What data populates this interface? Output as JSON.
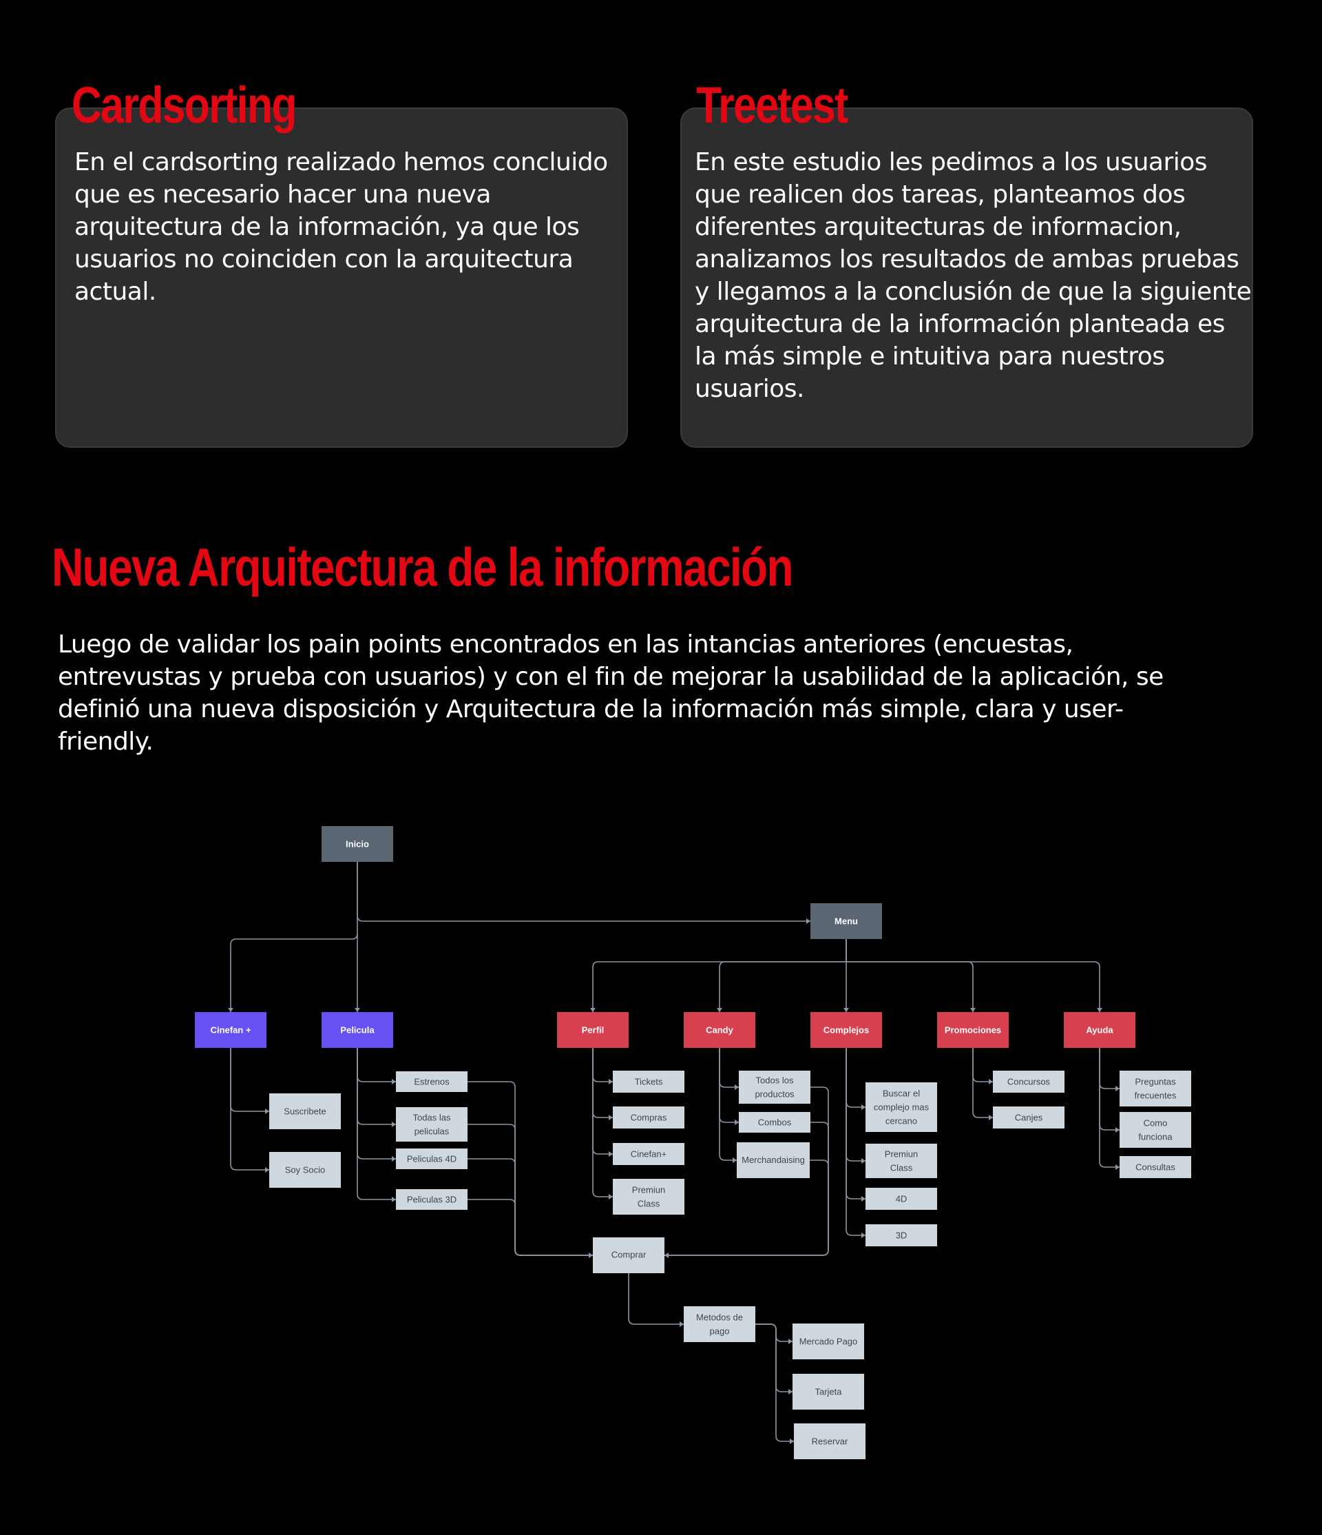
{
  "cards": {
    "cardsorting": {
      "title": "Cardsorting",
      "body": "En el cardsorting realizado hemos concluido que es necesario hacer una nueva arquitectura de la información, ya que los usuarios no coinciden con la arquitectura actual."
    },
    "treetest": {
      "title": "Treetest",
      "body": "En este estudio les pedimos a los usuarios que realicen dos tareas, planteamos dos diferentes arquitecturas de informacion, analizamos los resultados de ambas pruebas y llegamos a la conclusión de que la siguiente arquitectura de la información planteada es la más simple e intuitiva para nuestros usuarios."
    }
  },
  "section": {
    "title": "Nueva Arquitectura de la información",
    "body": "Luego de validar los pain points encontrados en las intancias anteriores (encuestas, entrevustas y prueba con usuarios) y con el fin de mejorar la usabilidad de la aplicación, se definió una nueva disposición y Arquitectura de la información más simple, clara y user-friendly."
  },
  "colors": {
    "root": "#5b6673",
    "purple": "#6652f2",
    "red": "#d6404f",
    "leaf": "#cfd8df",
    "line": "#8a96a2",
    "accent": "#e30613",
    "card": "#2d2d2d"
  },
  "diagram": {
    "nodes": {
      "inicio": "Inicio",
      "menu": "Menu",
      "cinefan_plus": "Cinefan +",
      "pelicula": "Pelicula",
      "perfil": "Perfil",
      "candy": "Candy",
      "complejos": "Complejos",
      "promociones": "Promociones",
      "ayuda": "Ayuda",
      "suscribete": "Suscribete",
      "soy_socio": "Soy Socio",
      "estrenos": "Estrenos",
      "todas_peliculas": [
        "Todas las",
        "peliculas"
      ],
      "peliculas_4d": "Peliculas 4D",
      "peliculas_3d": "Peliculas 3D",
      "tickets": "Tickets",
      "compras": "Compras",
      "cinefan_perfil": "Cinefan+",
      "premium_class_perfil": [
        "Premiun",
        "Class"
      ],
      "todos_productos": [
        "Todos los",
        "productos"
      ],
      "combos": "Combos",
      "merchandaising": "Merchandaising",
      "buscar_complejo": [
        "Buscar el",
        "complejo mas",
        "cercano"
      ],
      "premium_class_complejos": [
        "Premiun",
        "Class"
      ],
      "c_4d": "4D",
      "c_3d": "3D",
      "concursos": "Concursos",
      "canjes": "Canjes",
      "preguntas": [
        "Preguntas",
        "frecuentes"
      ],
      "como_funciona": [
        "Como",
        "funciona"
      ],
      "consultas": "Consultas",
      "comprar": "Comprar",
      "metodos_pago": [
        "Metodos de",
        "pago"
      ],
      "mercado_pago": "Mercado Pago",
      "tarjeta": "Tarjeta",
      "reservar": "Reservar"
    }
  }
}
